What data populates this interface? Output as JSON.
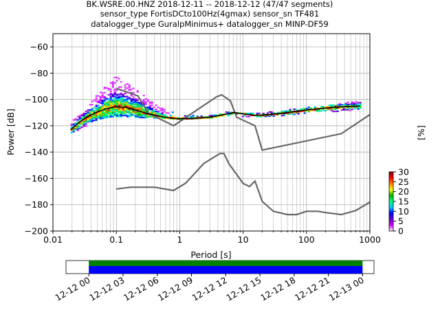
{
  "chart_data": {
    "type": "scatter",
    "title_lines": [
      "BK.WSRE.00.HNZ   2018-12-11 -- 2018-12-12  (47/47 segments)",
      "sensor_type FortisDCto100Hz(4gmax) sensor_sn TF481",
      "datalogger_type GuralpMinimus+ datalogger_sn MINP-DF59"
    ],
    "xlabel": "Period [s]",
    "ylabel": "Power [dB]",
    "xscale": "log",
    "xlim": [
      0.01,
      1000
    ],
    "ylim": [
      -200,
      -50
    ],
    "grid": true,
    "x_ticks": [
      {
        "v": 0.01,
        "label": "0.01"
      },
      {
        "v": 0.1,
        "label": "0.1"
      },
      {
        "v": 1,
        "label": "1"
      },
      {
        "v": 10,
        "label": "10"
      },
      {
        "v": 100,
        "label": "100"
      },
      {
        "v": 1000,
        "label": "1000"
      }
    ],
    "y_ticks": [
      {
        "v": -60,
        "label": "−60"
      },
      {
        "v": -80,
        "label": "−80"
      },
      {
        "v": -100,
        "label": "−100"
      },
      {
        "v": -120,
        "label": "−120"
      },
      {
        "v": -140,
        "label": "−140"
      },
      {
        "v": -160,
        "label": "−160"
      },
      {
        "v": -180,
        "label": "−180"
      },
      {
        "v": -200,
        "label": "−200"
      }
    ],
    "colorbar": {
      "label": "[%]",
      "min": 0,
      "max": 30,
      "ticks": [
        {
          "v": 0,
          "label": "0"
        },
        {
          "v": 5,
          "label": "5"
        },
        {
          "v": 10,
          "label": "10"
        },
        {
          "v": 15,
          "label": "15"
        },
        {
          "v": 20,
          "label": "20"
        },
        {
          "v": 25,
          "label": "25"
        },
        {
          "v": 30,
          "label": "30"
        }
      ],
      "colormap": [
        "#ffffff",
        "#d400ff",
        "#6600cc",
        "#0000ff",
        "#00c8ff",
        "#00ff80",
        "#00b400",
        "#ffff00",
        "#ff8000",
        "#ff0000",
        "#8b0000"
      ]
    },
    "noise_models": [
      {
        "name": "NHNM",
        "color": "#666666",
        "points": [
          [
            0.1,
            -91.5
          ],
          [
            0.22,
            -97.4
          ],
          [
            0.32,
            -110.5
          ],
          [
            0.8,
            -120
          ],
          [
            3.8,
            -98
          ],
          [
            4.6,
            -96.5
          ],
          [
            6.3,
            -101
          ],
          [
            7.9,
            -113.5
          ],
          [
            15.4,
            -120
          ],
          [
            20,
            -138.5
          ],
          [
            354.8,
            -126
          ],
          [
            1000,
            -111.5
          ]
        ]
      },
      {
        "name": "NLNM",
        "color": "#666666",
        "points": [
          [
            0.1,
            -168
          ],
          [
            0.17,
            -166.7
          ],
          [
            0.4,
            -166.7
          ],
          [
            0.8,
            -169.2
          ],
          [
            1.24,
            -163.7
          ],
          [
            2.4,
            -148.6
          ],
          [
            4.3,
            -141.1
          ],
          [
            5.0,
            -141.1
          ],
          [
            6.0,
            -149.0
          ],
          [
            10,
            -163.8
          ],
          [
            12.6,
            -166.2
          ],
          [
            15.4,
            -162.1
          ],
          [
            20,
            -177.5
          ],
          [
            30,
            -185
          ],
          [
            50,
            -187.5
          ],
          [
            70,
            -187.5
          ],
          [
            100,
            -185
          ],
          [
            150,
            -185
          ],
          [
            200,
            -186
          ],
          [
            354.8,
            -187.5
          ],
          [
            600,
            -184.4
          ],
          [
            1000,
            -178
          ]
        ]
      }
    ],
    "median_curve": {
      "color": "#000000",
      "points": [
        [
          0.019,
          -123
        ],
        [
          0.025,
          -118
        ],
        [
          0.035,
          -113
        ],
        [
          0.05,
          -109.5
        ],
        [
          0.07,
          -107
        ],
        [
          0.1,
          -105.5
        ],
        [
          0.14,
          -106
        ],
        [
          0.2,
          -108
        ],
        [
          0.3,
          -110.5
        ],
        [
          0.5,
          -113
        ],
        [
          0.8,
          -114.5
        ],
        [
          1.5,
          -114.5
        ],
        [
          3,
          -113.5
        ],
        [
          5,
          -111.5
        ],
        [
          7,
          -110
        ],
        [
          10,
          -111
        ],
        [
          15,
          -112
        ],
        [
          20,
          -112
        ],
        [
          40,
          -110.5
        ],
        [
          70,
          -109
        ],
        [
          100,
          -108
        ],
        [
          200,
          -106.5
        ],
        [
          400,
          -105.5
        ],
        [
          700,
          -105
        ]
      ]
    },
    "psd_cloud": {
      "x_range": [
        0.019,
        700
      ],
      "envelope": [
        {
          "x": 0.019,
          "lo": -126,
          "hi": -117
        },
        {
          "x": 0.03,
          "lo": -121,
          "hi": -108
        },
        {
          "x": 0.05,
          "lo": -115,
          "hi": -95
        },
        {
          "x": 0.08,
          "lo": -113,
          "hi": -84
        },
        {
          "x": 0.1,
          "lo": -113,
          "hi": -83
        },
        {
          "x": 0.15,
          "lo": -113,
          "hi": -88
        },
        {
          "x": 0.3,
          "lo": -114,
          "hi": -98
        },
        {
          "x": 0.5,
          "lo": -114,
          "hi": -106
        },
        {
          "x": 1,
          "lo": -115,
          "hi": -112
        },
        {
          "x": 3,
          "lo": -114,
          "hi": -112
        },
        {
          "x": 5,
          "lo": -112,
          "hi": -109
        },
        {
          "x": 10,
          "lo": -113,
          "hi": -110
        },
        {
          "x": 20,
          "lo": -113,
          "hi": -110
        },
        {
          "x": 50,
          "lo": -112,
          "hi": -108
        },
        {
          "x": 100,
          "lo": -110,
          "hi": -106
        },
        {
          "x": 300,
          "lo": -109,
          "hi": -103
        },
        {
          "x": 700,
          "lo": -108,
          "hi": -101
        }
      ]
    },
    "coverage": {
      "tick_labels": [
        "12-12 00",
        "12-12 03",
        "12-12 06",
        "12-12 09",
        "12-12 12",
        "12-12 15",
        "12-12 18",
        "12-12 21",
        "12-13 00"
      ],
      "range_start": "12-11 22:00",
      "range_end": "12-13 01:00",
      "data_start": "12-12 00:00",
      "data_end": "12-13 00:00",
      "colors": {
        "data": "#0000ff",
        "gaps_none": "#008000"
      }
    }
  }
}
